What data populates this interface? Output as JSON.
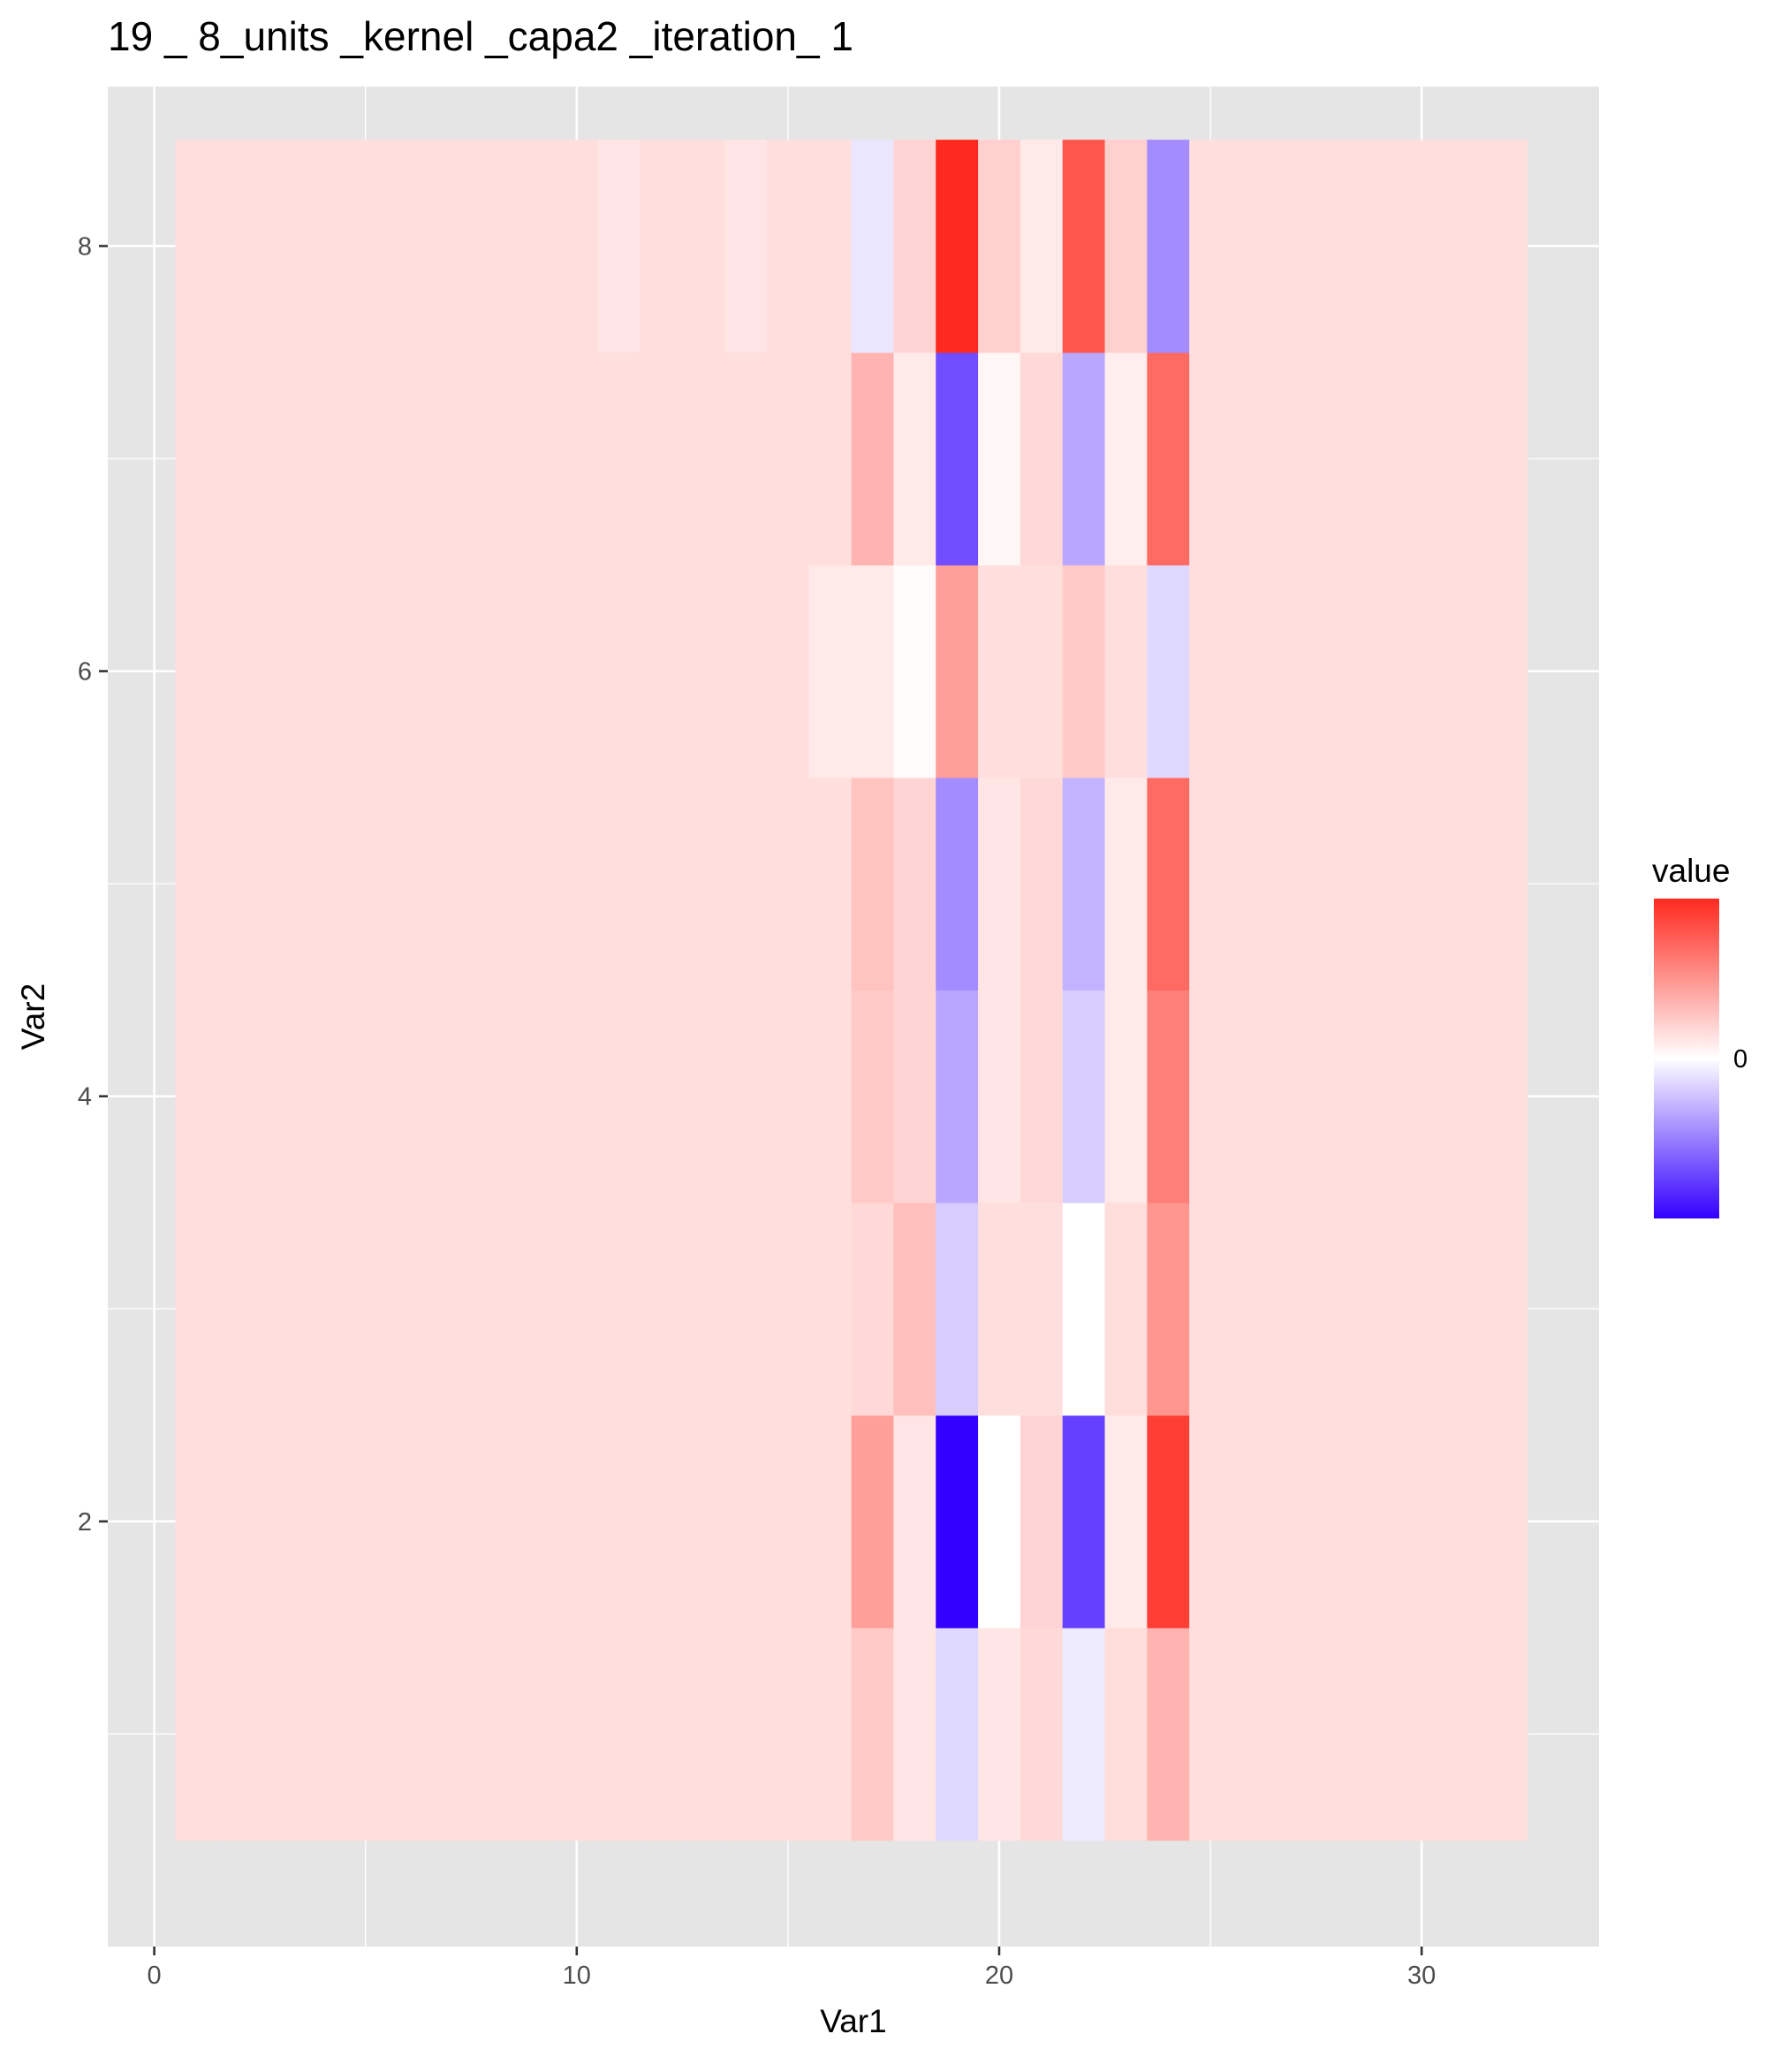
{
  "chart_data": {
    "type": "heatmap",
    "title": "19 _ 8_units _kernel _capa2 _iteration_ 1",
    "xlabel": "Var1",
    "ylabel": "Var2",
    "x_ticks": [
      0,
      10,
      20,
      30
    ],
    "y_ticks": [
      2,
      4,
      6,
      8
    ],
    "x_tick_labels": [
      "0",
      "10",
      "20",
      "30"
    ],
    "y_tick_labels": [
      "2",
      "4",
      "6",
      "8"
    ],
    "xlim": [
      -1.1,
      34.2
    ],
    "ylim": [
      0.0,
      8.75
    ],
    "x": [
      1,
      2,
      3,
      4,
      5,
      6,
      7,
      8,
      9,
      10,
      11,
      12,
      13,
      14,
      15,
      16,
      17,
      18,
      19,
      20,
      21,
      22,
      23,
      24,
      25,
      26,
      27,
      28,
      29,
      30,
      31,
      32
    ],
    "y": [
      1,
      2,
      3,
      4,
      5,
      6,
      7,
      8
    ],
    "z_scale": [
      -1,
      1
    ],
    "values": [
      [
        0.15,
        0.15,
        0.15,
        0.15,
        0.15,
        0.15,
        0.15,
        0.15,
        0.15,
        0.15,
        0.15,
        0.15,
        0.15,
        0.15,
        0.15,
        0.15,
        0.25,
        0.12,
        -0.15,
        0.12,
        0.18,
        -0.08,
        0.16,
        0.35,
        0.15,
        0.15,
        0.15,
        0.15,
        0.15,
        0.15,
        0.15,
        0.15
      ],
      [
        0.15,
        0.15,
        0.15,
        0.15,
        0.15,
        0.15,
        0.15,
        0.15,
        0.15,
        0.15,
        0.15,
        0.15,
        0.15,
        0.15,
        0.15,
        0.15,
        0.45,
        0.12,
        -1.0,
        0.0,
        0.2,
        -0.75,
        0.1,
        0.9,
        0.15,
        0.15,
        0.15,
        0.15,
        0.15,
        0.15,
        0.15,
        0.15
      ],
      [
        0.15,
        0.15,
        0.15,
        0.15,
        0.15,
        0.15,
        0.15,
        0.15,
        0.15,
        0.15,
        0.15,
        0.15,
        0.15,
        0.15,
        0.15,
        0.15,
        0.18,
        0.3,
        -0.2,
        0.15,
        0.15,
        0.0,
        0.16,
        0.5,
        0.15,
        0.15,
        0.15,
        0.15,
        0.15,
        0.15,
        0.15,
        0.15
      ],
      [
        0.15,
        0.15,
        0.15,
        0.15,
        0.15,
        0.15,
        0.15,
        0.15,
        0.15,
        0.15,
        0.15,
        0.15,
        0.15,
        0.15,
        0.15,
        0.15,
        0.25,
        0.2,
        -0.35,
        0.12,
        0.18,
        -0.2,
        0.1,
        0.6,
        0.15,
        0.15,
        0.15,
        0.15,
        0.15,
        0.15,
        0.15,
        0.15
      ],
      [
        0.15,
        0.15,
        0.15,
        0.15,
        0.15,
        0.15,
        0.15,
        0.15,
        0.15,
        0.15,
        0.15,
        0.15,
        0.15,
        0.15,
        0.15,
        0.15,
        0.28,
        0.2,
        -0.45,
        0.12,
        0.18,
        -0.3,
        0.1,
        0.7,
        0.15,
        0.15,
        0.15,
        0.15,
        0.15,
        0.15,
        0.15,
        0.15
      ],
      [
        0.15,
        0.15,
        0.15,
        0.15,
        0.15,
        0.15,
        0.15,
        0.15,
        0.15,
        0.15,
        0.15,
        0.15,
        0.15,
        0.15,
        0.15,
        0.1,
        0.1,
        0.02,
        0.45,
        0.15,
        0.15,
        0.25,
        0.15,
        -0.15,
        0.15,
        0.15,
        0.15,
        0.15,
        0.15,
        0.15,
        0.15,
        0.15
      ],
      [
        0.15,
        0.15,
        0.15,
        0.15,
        0.15,
        0.15,
        0.15,
        0.15,
        0.15,
        0.15,
        0.15,
        0.15,
        0.15,
        0.15,
        0.15,
        0.15,
        0.35,
        0.1,
        -0.7,
        0.04,
        0.18,
        -0.35,
        0.08,
        0.7,
        0.15,
        0.15,
        0.15,
        0.15,
        0.15,
        0.15,
        0.15,
        0.15
      ],
      [
        0.15,
        0.15,
        0.15,
        0.15,
        0.15,
        0.15,
        0.15,
        0.15,
        0.15,
        0.15,
        0.12,
        0.15,
        0.15,
        0.12,
        0.15,
        0.15,
        -0.1,
        0.2,
        1.0,
        0.22,
        0.1,
        0.8,
        0.22,
        -0.45,
        0.15,
        0.15,
        0.15,
        0.15,
        0.15,
        0.15,
        0.15,
        0.15
      ]
    ],
    "legend": {
      "title": "value",
      "label": "0",
      "placement": "right",
      "low_color": "#3300ff",
      "mid_color": "#ffffff",
      "high_color": "#ff2a1f"
    },
    "panel_background": "#e5e5e5",
    "grid_color": "#ffffff",
    "grid": true
  }
}
